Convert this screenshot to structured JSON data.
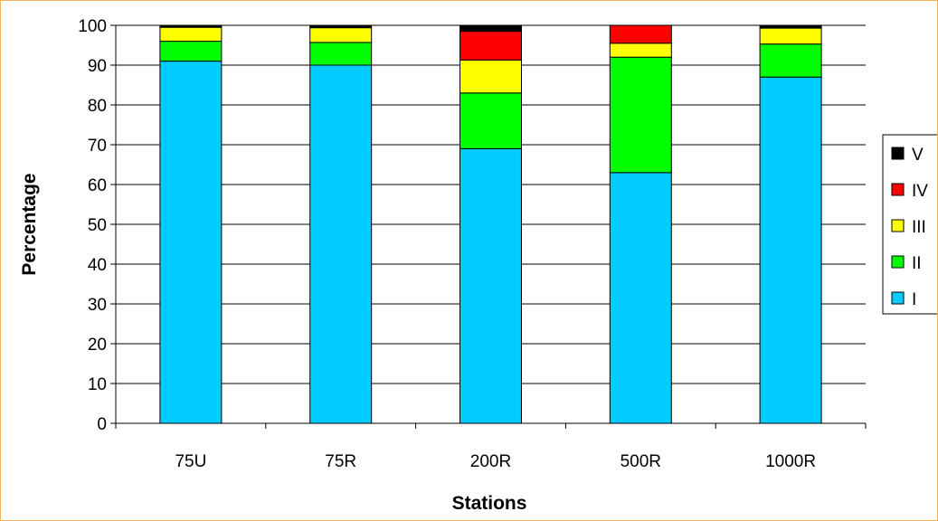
{
  "chart_data": {
    "type": "bar",
    "stacked": true,
    "title": "",
    "xlabel": "Stations",
    "ylabel": "Percentage",
    "ylim": [
      0,
      100
    ],
    "yticks": [
      0,
      10,
      20,
      30,
      40,
      50,
      60,
      70,
      80,
      90,
      100
    ],
    "grid": true,
    "legend": "right",
    "categories": [
      "75U",
      "75R",
      "200R",
      "500R",
      "1000R"
    ],
    "series": [
      {
        "name": "I",
        "color": "#00ccff",
        "values": [
          91,
          90,
          69,
          63,
          87
        ]
      },
      {
        "name": "II",
        "color": "#00ff00",
        "values": [
          5,
          5.7,
          14,
          29,
          8.3
        ]
      },
      {
        "name": "III",
        "color": "#ffff00",
        "values": [
          3.5,
          3.7,
          8.3,
          3.5,
          4
        ]
      },
      {
        "name": "IV",
        "color": "#ff0000",
        "values": [
          0,
          0,
          7.2,
          4.5,
          0
        ]
      },
      {
        "name": "V",
        "color": "#000000",
        "values": [
          0.5,
          0.6,
          1.5,
          0,
          0.7
        ]
      }
    ]
  }
}
